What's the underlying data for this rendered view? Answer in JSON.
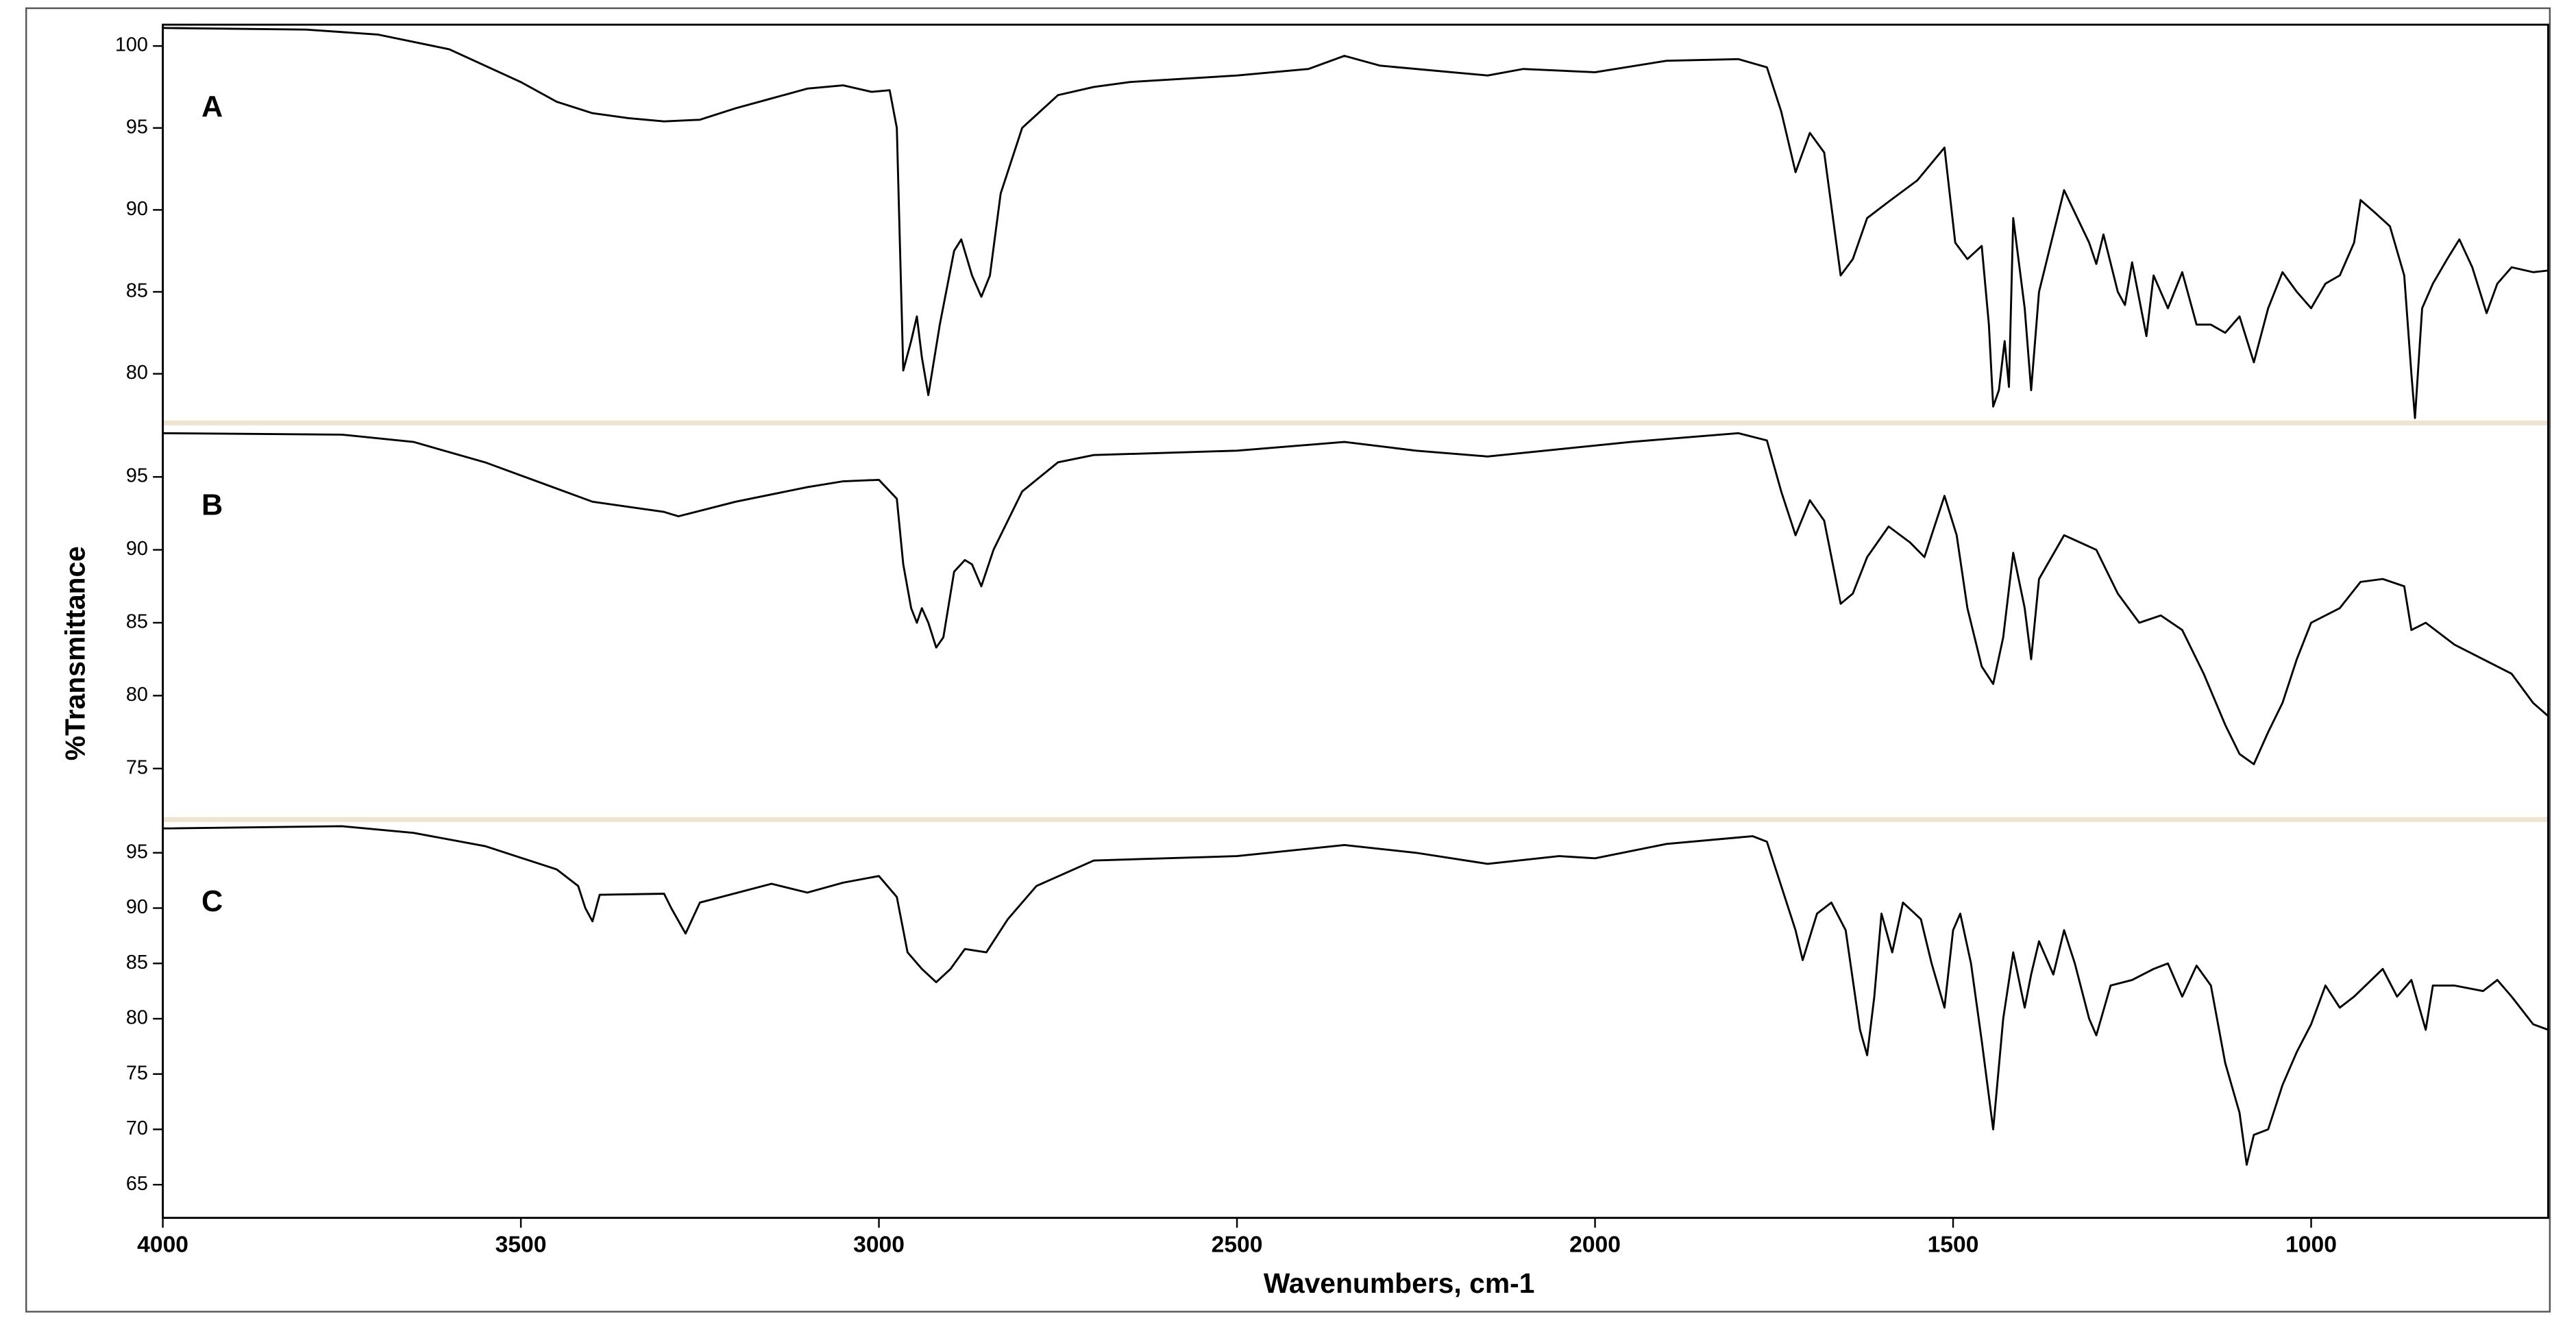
{
  "chart_data": [
    {
      "type": "line",
      "x": [
        4000,
        3800,
        3700,
        3600,
        3500,
        3450,
        3400,
        3350,
        3300,
        3250,
        3200,
        3150,
        3100,
        3050,
        3010,
        2985,
        2975,
        2966,
        2955,
        2947,
        2940,
        2931,
        2915,
        2895,
        2885,
        2870,
        2857,
        2845,
        2830,
        2800,
        2750,
        2700,
        2650,
        2500,
        2400,
        2350,
        2300,
        2200,
        2150,
        2100,
        2000,
        1900,
        1800,
        1760,
        1740,
        1720,
        1700,
        1680,
        1657,
        1640,
        1620,
        1590,
        1550,
        1512,
        1497,
        1480,
        1460,
        1450,
        1444,
        1436,
        1428,
        1422,
        1416,
        1400,
        1391,
        1380,
        1345,
        1310,
        1300,
        1290,
        1270,
        1260,
        1250,
        1230,
        1220,
        1200,
        1180,
        1160,
        1140,
        1120,
        1100,
        1080,
        1060,
        1040,
        1020,
        1000,
        980,
        960,
        940,
        931,
        910,
        890,
        870,
        860,
        855,
        845,
        830,
        810,
        793,
        775,
        755,
        740,
        720,
        690,
        669
      ],
      "series": [
        {
          "name": "A",
          "color": "#000000",
          "values": [
            101.1,
            101.0,
            100.7,
            99.8,
            97.8,
            96.6,
            95.9,
            95.6,
            95.4,
            95.5,
            96.2,
            96.8,
            97.4,
            97.6,
            97.2,
            97.3,
            95,
            80.2,
            82,
            83.5,
            81,
            78.7,
            83,
            87.5,
            88.2,
            86,
            84.7,
            86,
            91,
            95,
            97,
            97.5,
            97.8,
            98.2,
            98.6,
            99.4,
            98.8,
            98.4,
            98.2,
            98.6,
            98.4,
            99.1,
            99.2,
            98.7,
            96,
            92.3,
            94.7,
            93.5,
            86,
            87,
            89.5,
            90.5,
            91.8,
            93.8,
            88,
            87,
            87.8,
            83,
            78,
            79,
            82,
            79.2,
            89.5,
            84,
            79,
            85,
            91.2,
            88,
            86.7,
            88.5,
            85,
            84.2,
            86.8,
            82.3,
            86,
            84,
            86.2,
            83,
            83,
            82.5,
            83.5,
            80.7,
            84,
            86.2,
            85,
            84,
            85.5,
            86,
            88,
            90.6,
            89.8,
            89,
            86,
            80,
            77.3,
            84,
            85.5,
            87,
            88.2,
            86.5,
            83.7,
            85.5,
            86.5,
            86.2,
            86.3
          ]
        }
      ],
      "xlim": [
        4000,
        669
      ],
      "ylim": [
        77,
        101.3
      ],
      "yticks": [
        80,
        85,
        90,
        95,
        100
      ]
    },
    {
      "type": "line",
      "ylabel": "%Transmittance",
      "x": [
        4000,
        3750,
        3650,
        3550,
        3450,
        3400,
        3300,
        3280,
        3200,
        3100,
        3050,
        3000,
        2975,
        2966,
        2955,
        2947,
        2940,
        2931,
        2920,
        2910,
        2895,
        2880,
        2870,
        2857,
        2840,
        2800,
        2750,
        2700,
        2500,
        2350,
        2250,
        2150,
        2050,
        1950,
        1800,
        1760,
        1740,
        1720,
        1700,
        1680,
        1657,
        1640,
        1620,
        1590,
        1560,
        1540,
        1512,
        1495,
        1480,
        1460,
        1444,
        1430,
        1416,
        1400,
        1391,
        1380,
        1345,
        1300,
        1270,
        1240,
        1210,
        1180,
        1150,
        1120,
        1100,
        1080,
        1060,
        1040,
        1020,
        1000,
        960,
        931,
        900,
        870,
        860,
        840,
        800,
        760,
        720,
        690,
        669
      ],
      "series": [
        {
          "name": "B",
          "color": "#000000",
          "values": [
            98.0,
            97.9,
            97.4,
            96,
            94.2,
            93.3,
            92.6,
            92.3,
            93.3,
            94.3,
            94.7,
            94.8,
            93.5,
            89,
            86,
            85,
            86,
            85,
            83.3,
            84,
            88.5,
            89.3,
            89,
            87.5,
            90,
            94,
            96,
            96.5,
            96.8,
            97.4,
            96.8,
            96.4,
            96.9,
            97.4,
            98,
            97.5,
            94,
            91,
            93.4,
            92,
            86.3,
            87,
            89.5,
            91.6,
            90.5,
            89.5,
            93.7,
            91,
            86,
            82,
            80.8,
            84,
            89.8,
            86,
            82.5,
            88,
            91,
            90,
            87,
            85,
            85.5,
            84.5,
            81.5,
            78,
            76,
            75.3,
            77.5,
            79.5,
            82.5,
            85,
            86,
            87.8,
            88,
            87.5,
            84.5,
            85,
            83.5,
            82.5,
            81.5,
            79.5,
            78.6
          ]
        }
      ],
      "xlim": [
        4000,
        669
      ],
      "ylim": [
        71.5,
        98.7
      ],
      "yticks": [
        75,
        80,
        85,
        90,
        95
      ]
    },
    {
      "type": "line",
      "xlabel": "Wavenumbers, cm-1",
      "x": [
        4000,
        3750,
        3650,
        3550,
        3450,
        3420,
        3410,
        3400,
        3390,
        3300,
        3290,
        3270,
        3250,
        3150,
        3100,
        3050,
        3000,
        2975,
        2960,
        2940,
        2920,
        2900,
        2880,
        2850,
        2820,
        2780,
        2700,
        2500,
        2350,
        2250,
        2150,
        2050,
        2000,
        1900,
        1780,
        1760,
        1740,
        1720,
        1710,
        1690,
        1670,
        1650,
        1630,
        1620,
        1610,
        1600,
        1585,
        1570,
        1545,
        1530,
        1512,
        1500,
        1490,
        1475,
        1460,
        1444,
        1430,
        1416,
        1400,
        1391,
        1380,
        1360,
        1345,
        1330,
        1310,
        1300,
        1280,
        1250,
        1220,
        1200,
        1180,
        1160,
        1140,
        1120,
        1100,
        1090,
        1080,
        1060,
        1040,
        1020,
        1000,
        980,
        960,
        940,
        900,
        880,
        860,
        840,
        830,
        800,
        760,
        740,
        720,
        690,
        669
      ],
      "series": [
        {
          "name": "C",
          "color": "#000000",
          "values": [
            97.2,
            97.4,
            96.8,
            95.6,
            93.5,
            92,
            90,
            88.8,
            91.2,
            91.3,
            90,
            87.7,
            90.5,
            92.2,
            91.4,
            92.3,
            92.9,
            91,
            86,
            84.5,
            83.3,
            84.5,
            86.3,
            86,
            89,
            92,
            94.3,
            94.7,
            95.7,
            95,
            94,
            94.7,
            94.5,
            95.8,
            96.5,
            96,
            92,
            88,
            85.3,
            89.5,
            90.5,
            88,
            79,
            76.7,
            82,
            89.5,
            86,
            90.5,
            89,
            85,
            81,
            88,
            89.5,
            85,
            78,
            70,
            80,
            86,
            81,
            84,
            87,
            84,
            88,
            85,
            80,
            78.5,
            83,
            83.5,
            84.5,
            85,
            82,
            84.8,
            83,
            76,
            71.5,
            66.8,
            69.5,
            70,
            74,
            77,
            79.5,
            83,
            81,
            82,
            84.5,
            82,
            83.5,
            79,
            83,
            83,
            82.5,
            83.5,
            82,
            79.5,
            79
          ]
        }
      ],
      "xlim": [
        4000,
        669
      ],
      "ylim": [
        62,
        98
      ],
      "yticks": [
        65,
        70,
        75,
        80,
        85,
        90,
        95
      ],
      "xticks": [
        4000,
        3500,
        3000,
        2500,
        2000,
        1500,
        1000
      ]
    }
  ]
}
